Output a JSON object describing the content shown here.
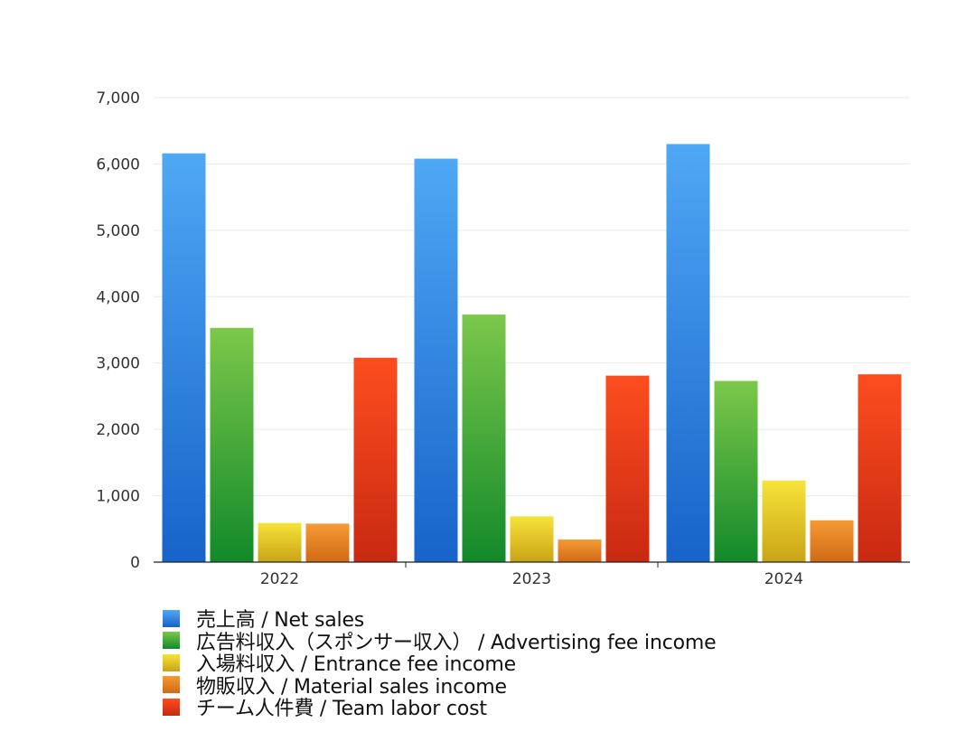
{
  "chart_data": {
    "type": "bar",
    "categories": [
      "2022",
      "2023",
      "2024"
    ],
    "series": [
      {
        "name": "売上高 / Net sales",
        "values": [
          6160,
          6080,
          6300
        ],
        "color_top": "#4fa8f5",
        "color_bottom": "#1763c9"
      },
      {
        "name": "広告料収入（スポンサー収入） / Advertising fee income",
        "values": [
          3530,
          3730,
          2730
        ],
        "color_top": "#7cc84a",
        "color_bottom": "#12892a"
      },
      {
        "name": "入場料収入 / Entrance fee income",
        "values": [
          590,
          690,
          1230
        ],
        "color_top": "#f7e33a",
        "color_bottom": "#c9a416"
      },
      {
        "name": "物販収入 / Material sales income",
        "values": [
          580,
          340,
          630
        ],
        "color_top": "#f59a34",
        "color_bottom": "#d06a16"
      },
      {
        "name": "チーム人件費 / Team labor cost",
        "values": [
          3080,
          2810,
          2830
        ],
        "color_top": "#fd4d1f",
        "color_bottom": "#c82912"
      }
    ],
    "y_ticks": [
      "0",
      "1,000",
      "2,000",
      "3,000",
      "4,000",
      "5,000",
      "6,000",
      "7,000"
    ],
    "ylim": [
      0,
      7000
    ],
    "grid": true,
    "legend_position": "bottom-left"
  }
}
